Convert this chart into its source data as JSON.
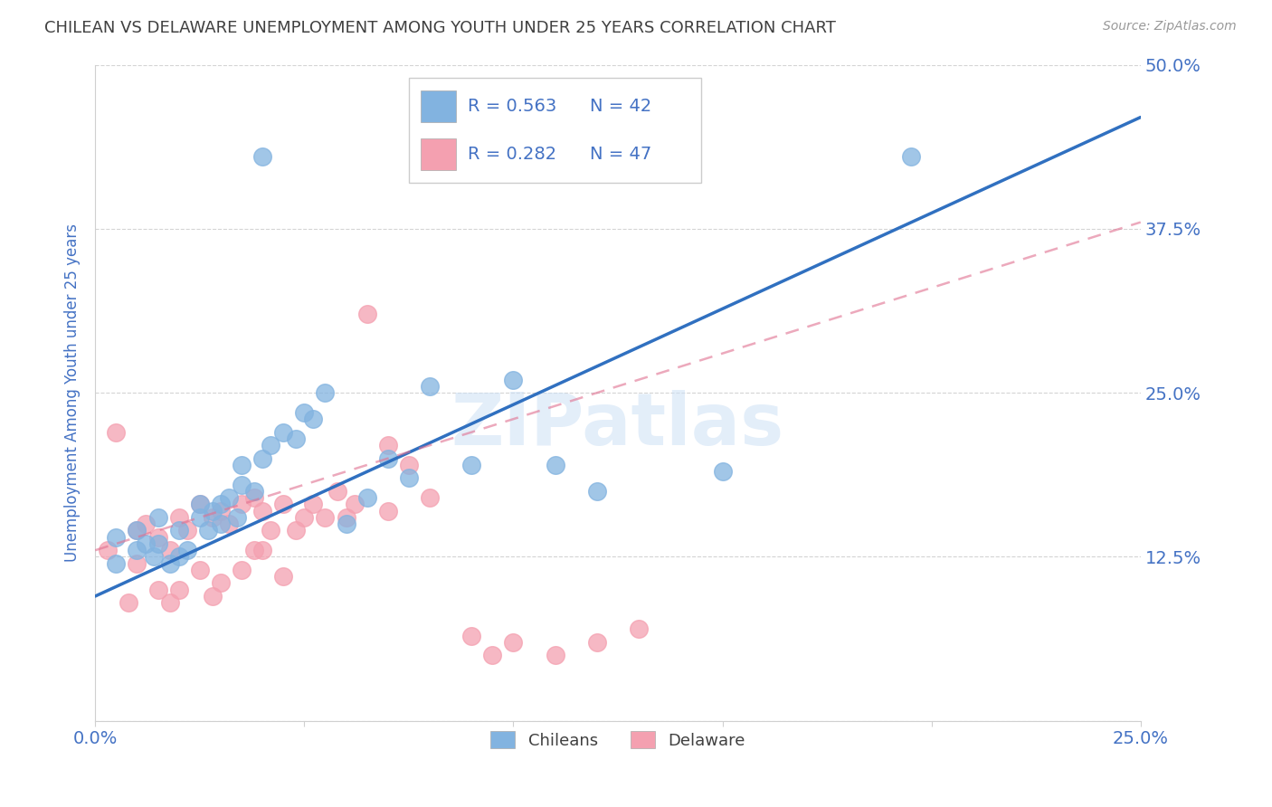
{
  "title": "CHILEAN VS DELAWARE UNEMPLOYMENT AMONG YOUTH UNDER 25 YEARS CORRELATION CHART",
  "source": "Source: ZipAtlas.com",
  "ylabel": "Unemployment Among Youth under 25 years",
  "xlim": [
    0.0,
    0.25
  ],
  "ylim": [
    0.0,
    0.5
  ],
  "yticks": [
    0.0,
    0.125,
    0.25,
    0.375,
    0.5
  ],
  "ytick_labels_right": [
    "",
    "12.5%",
    "25.0%",
    "37.5%",
    "50.0%"
  ],
  "xticks": [
    0.0,
    0.05,
    0.1,
    0.15,
    0.2,
    0.25
  ],
  "xtick_labels": [
    "0.0%",
    "",
    "",
    "",
    "",
    "25.0%"
  ],
  "legend_blue_r": "R = 0.563",
  "legend_blue_n": "N = 42",
  "legend_pink_r": "R = 0.282",
  "legend_pink_n": "N = 47",
  "legend_label_blue": "Chileans",
  "legend_label_pink": "Delaware",
  "blue_color": "#82b3e0",
  "pink_color": "#f4a0b0",
  "trend_blue_color": "#3070c0",
  "trend_pink_color": "#e07090",
  "axis_label_color": "#4472c4",
  "title_color": "#404040",
  "watermark": "ZIPatlas",
  "background_color": "#ffffff",
  "grid_color": "#d0d0d0",
  "blue_scatter_x": [
    0.005,
    0.005,
    0.01,
    0.01,
    0.012,
    0.014,
    0.015,
    0.015,
    0.018,
    0.02,
    0.02,
    0.022,
    0.025,
    0.025,
    0.027,
    0.028,
    0.03,
    0.03,
    0.032,
    0.034,
    0.035,
    0.035,
    0.038,
    0.04,
    0.042,
    0.045,
    0.048,
    0.05,
    0.052,
    0.055,
    0.06,
    0.065,
    0.07,
    0.075,
    0.08,
    0.09,
    0.1,
    0.11,
    0.12,
    0.15,
    0.04,
    0.195
  ],
  "blue_scatter_y": [
    0.12,
    0.14,
    0.13,
    0.145,
    0.135,
    0.125,
    0.135,
    0.155,
    0.12,
    0.125,
    0.145,
    0.13,
    0.165,
    0.155,
    0.145,
    0.16,
    0.15,
    0.165,
    0.17,
    0.155,
    0.18,
    0.195,
    0.175,
    0.2,
    0.21,
    0.22,
    0.215,
    0.235,
    0.23,
    0.25,
    0.15,
    0.17,
    0.2,
    0.185,
    0.255,
    0.195,
    0.26,
    0.195,
    0.175,
    0.19,
    0.43,
    0.43
  ],
  "pink_scatter_x": [
    0.003,
    0.005,
    0.008,
    0.01,
    0.01,
    0.012,
    0.015,
    0.015,
    0.018,
    0.018,
    0.02,
    0.02,
    0.022,
    0.025,
    0.025,
    0.028,
    0.028,
    0.03,
    0.03,
    0.032,
    0.035,
    0.035,
    0.038,
    0.038,
    0.04,
    0.04,
    0.042,
    0.045,
    0.045,
    0.048,
    0.05,
    0.052,
    0.055,
    0.058,
    0.06,
    0.062,
    0.065,
    0.07,
    0.07,
    0.075,
    0.08,
    0.09,
    0.095,
    0.1,
    0.11,
    0.12,
    0.13
  ],
  "pink_scatter_y": [
    0.13,
    0.22,
    0.09,
    0.12,
    0.145,
    0.15,
    0.1,
    0.14,
    0.09,
    0.13,
    0.1,
    0.155,
    0.145,
    0.115,
    0.165,
    0.095,
    0.155,
    0.105,
    0.16,
    0.15,
    0.115,
    0.165,
    0.13,
    0.17,
    0.13,
    0.16,
    0.145,
    0.11,
    0.165,
    0.145,
    0.155,
    0.165,
    0.155,
    0.175,
    0.155,
    0.165,
    0.31,
    0.16,
    0.21,
    0.195,
    0.17,
    0.065,
    0.05,
    0.06,
    0.05,
    0.06,
    0.07
  ],
  "blue_trend_x": [
    0.0,
    0.25
  ],
  "blue_trend_y": [
    0.095,
    0.46
  ],
  "pink_trend_x": [
    0.0,
    0.25
  ],
  "pink_trend_y": [
    0.13,
    0.38
  ]
}
